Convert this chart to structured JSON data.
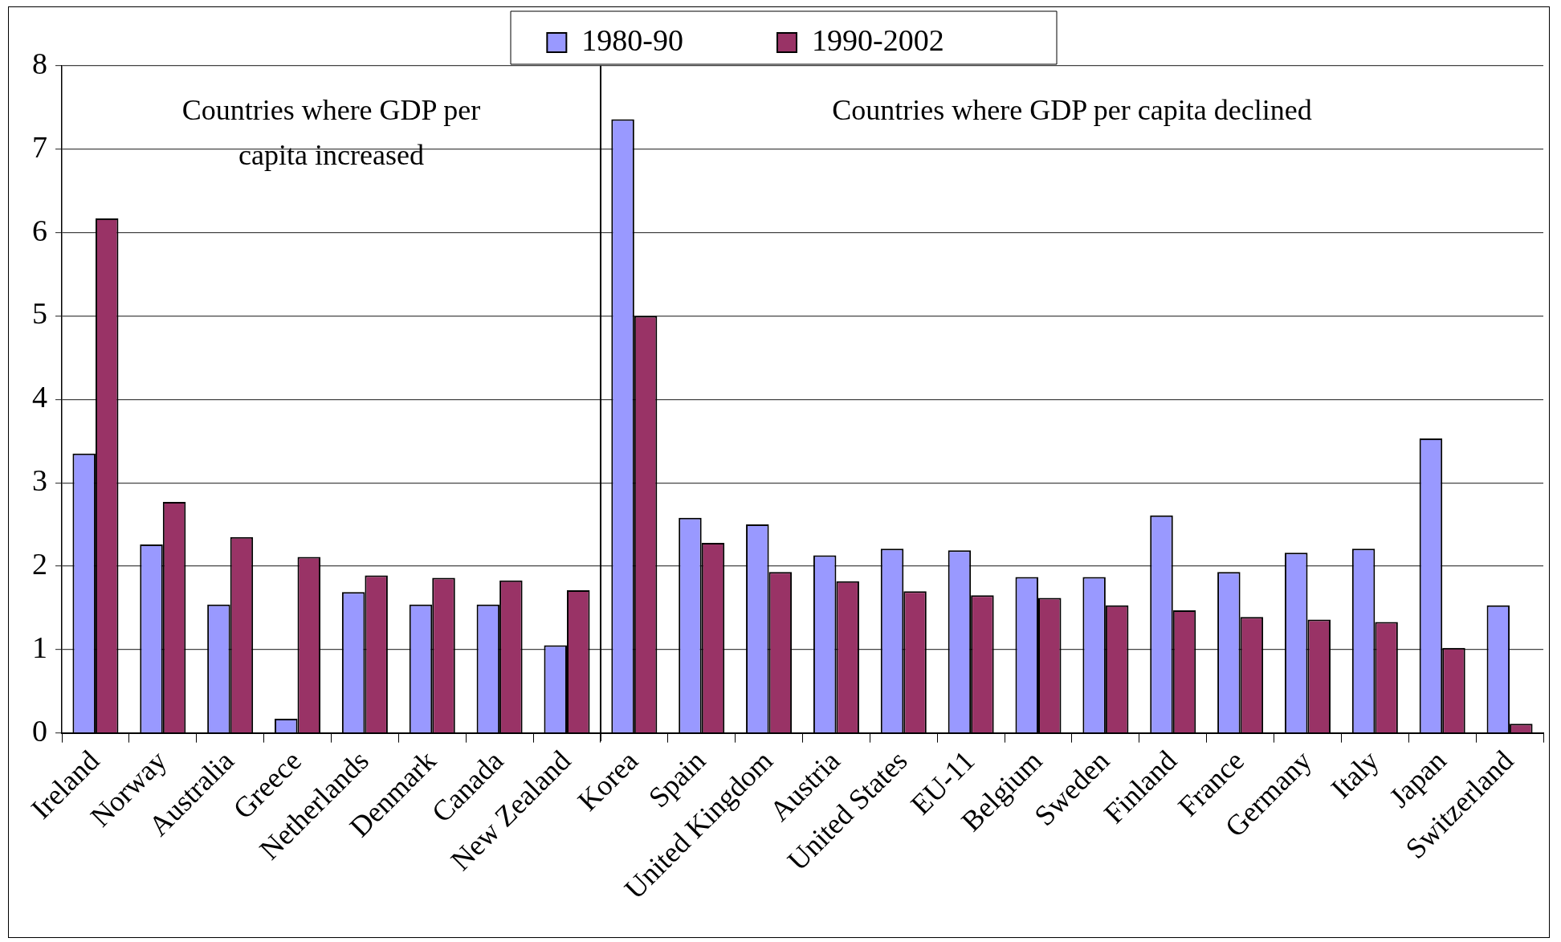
{
  "chart_data": {
    "type": "bar",
    "categories": [
      "Ireland",
      "Norway",
      "Australia",
      "Greece",
      "Netherlands",
      "Denmark",
      "Canada",
      "New Zealand",
      "Korea",
      "Spain",
      "United Kingdom",
      "Austria",
      "United States",
      "EU-11",
      "Belgium",
      "Sweden",
      "Finland",
      "France",
      "Germany",
      "Italy",
      "Japan",
      "Switzerland"
    ],
    "series": [
      {
        "name": "1980-90",
        "color": "#9999ff",
        "values": [
          3.35,
          2.26,
          1.54,
          0.17,
          1.69,
          1.54,
          1.54,
          1.05,
          7.36,
          2.58,
          2.5,
          2.13,
          2.21,
          2.19,
          1.87,
          1.87,
          2.61,
          1.93,
          2.16,
          2.21,
          3.53,
          1.53
        ]
      },
      {
        "name": "1990-2002",
        "color": "#993366",
        "values": [
          6.17,
          2.77,
          2.35,
          2.11,
          1.89,
          1.86,
          1.83,
          1.71,
          5.0,
          2.28,
          1.93,
          1.82,
          1.7,
          1.65,
          1.62,
          1.53,
          1.47,
          1.39,
          1.36,
          1.33,
          1.02,
          0.11
        ]
      }
    ],
    "ylim": [
      0,
      8
    ],
    "yticks": [
      0,
      1,
      2,
      3,
      4,
      5,
      6,
      7,
      8
    ],
    "grid": "y",
    "legend": "top",
    "annotations": [
      "Countries where GDP per capita increased",
      "Countries where GDP per capita declined"
    ]
  }
}
